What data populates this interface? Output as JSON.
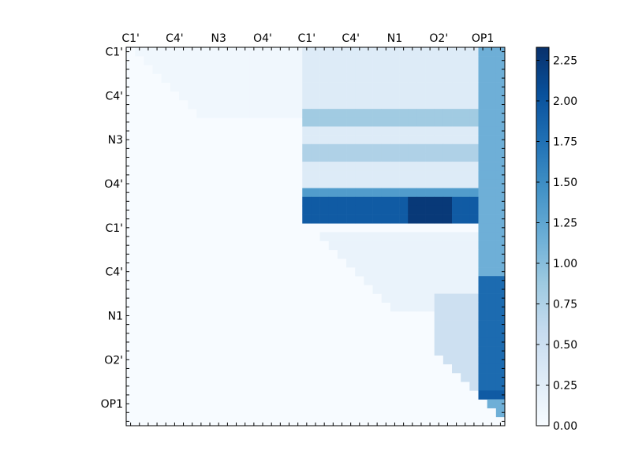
{
  "chart_data": {
    "type": "heatmap",
    "title": "",
    "n_rows": 43,
    "n_cols": 43,
    "x_tick_labels": [
      "C1'",
      "C4'",
      "N3",
      "O4'",
      "C1'",
      "C4'",
      "N1",
      "O2'",
      "OP1"
    ],
    "y_tick_labels": [
      "C1'",
      "C4'",
      "N3",
      "O4'",
      "C1'",
      "C4'",
      "N1",
      "O2'",
      "OP1"
    ],
    "label_every": 5,
    "colormap": "Blues",
    "colormap_low": "#f7fbff",
    "colormap_high": "#08306b",
    "vmin": 0.0,
    "vmax": 2.33,
    "colorbar_ticks": [
      "0.00",
      "0.25",
      "0.50",
      "0.75",
      "1.00",
      "1.25",
      "1.50",
      "1.75",
      "2.00",
      "2.25"
    ],
    "colorbar_tick_values": [
      0.0,
      0.25,
      0.5,
      0.75,
      1.0,
      1.25,
      1.5,
      1.75,
      2.0,
      2.25
    ],
    "x_tick_position": "top",
    "matrix_shape": "upper-triangular",
    "regions": [
      {
        "rows": [
          0,
          7
        ],
        "cols": [
          1,
          19
        ],
        "value": 0.08
      },
      {
        "rows": [
          0,
          15
        ],
        "cols": [
          20,
          39
        ],
        "value": 0.3
      },
      {
        "rows": [
          7,
          8
        ],
        "cols": [
          20,
          39
        ],
        "value": 0.85
      },
      {
        "rows": [
          11,
          12
        ],
        "cols": [
          20,
          39
        ],
        "value": 0.75
      },
      {
        "rows": [
          16,
          16
        ],
        "cols": [
          20,
          39
        ],
        "value": 1.35
      },
      {
        "rows": [
          17,
          19
        ],
        "cols": [
          20,
          39
        ],
        "value": 1.95
      },
      {
        "rows": [
          17,
          19
        ],
        "cols": [
          32,
          36
        ],
        "value": 2.25
      },
      {
        "rows": [
          21,
          29
        ],
        "cols": [
          22,
          39
        ],
        "value": 0.15
      },
      {
        "rows": [
          28,
          38
        ],
        "cols": [
          35,
          39
        ],
        "value": 0.5
      },
      {
        "rows": [
          0,
          42
        ],
        "cols": [
          40,
          42
        ],
        "value": 1.15
      },
      {
        "rows": [
          26,
          39
        ],
        "cols": [
          40,
          42
        ],
        "value": 1.8
      },
      {
        "rows": [
          39,
          39
        ],
        "cols": [
          40,
          42
        ],
        "value": 1.95
      }
    ]
  }
}
